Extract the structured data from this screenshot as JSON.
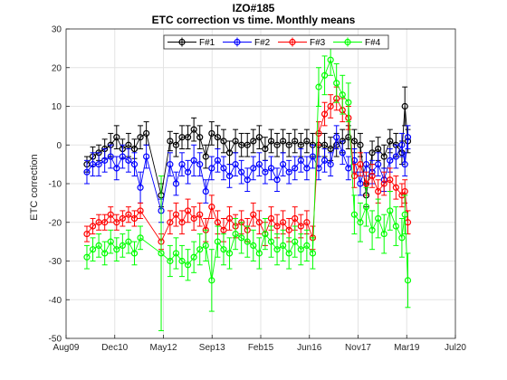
{
  "chart_data": {
    "type": "scatter",
    "title": "IZO#185",
    "subtitle": "ETC correction vs time. Monthly means",
    "xlabel": "",
    "ylabel": "ETC correction",
    "x_ticks": [
      "Aug09",
      "Dec10",
      "May12",
      "Sep13",
      "Feb15",
      "Jun16",
      "Nov17",
      "Mar19",
      "Jul20"
    ],
    "xlim": [
      "2009-08",
      "2020-07"
    ],
    "ylim": [
      -50,
      30
    ],
    "y_ticks": [
      -50,
      -40,
      -30,
      -20,
      -10,
      0,
      10,
      20,
      30
    ],
    "grid": true,
    "legend_placement": "top-center",
    "series": [
      {
        "name": "F#1",
        "color": "#000000",
        "marker": "circle",
        "points": [
          [
            "2010-03",
            -5,
            2
          ],
          [
            "2010-05",
            -3,
            2.5
          ],
          [
            "2010-07",
            -2,
            2
          ],
          [
            "2010-09",
            -1,
            2.5
          ],
          [
            "2010-11",
            0,
            3
          ],
          [
            "2011-01",
            2,
            3
          ],
          [
            "2011-03",
            -1,
            2.5
          ],
          [
            "2011-05",
            0,
            3
          ],
          [
            "2011-07",
            -1,
            2.5
          ],
          [
            "2011-09",
            2,
            3
          ],
          [
            "2011-11",
            3,
            3
          ],
          [
            "2012-04",
            -13,
            3
          ],
          [
            "2012-07",
            1,
            2.5
          ],
          [
            "2012-09",
            0,
            3
          ],
          [
            "2012-11",
            2,
            3
          ],
          [
            "2013-01",
            2,
            3
          ],
          [
            "2013-03",
            4,
            3
          ],
          [
            "2013-05",
            2,
            3
          ],
          [
            "2013-07",
            -3,
            3
          ],
          [
            "2013-09",
            3,
            3
          ],
          [
            "2013-11",
            2,
            3
          ],
          [
            "2014-01",
            1,
            3
          ],
          [
            "2014-03",
            -2,
            3
          ],
          [
            "2014-05",
            1,
            3
          ],
          [
            "2014-07",
            0,
            3
          ],
          [
            "2014-09",
            0,
            3
          ],
          [
            "2014-11",
            1,
            3
          ],
          [
            "2015-01",
            2,
            3
          ],
          [
            "2015-03",
            -1,
            3
          ],
          [
            "2015-05",
            1,
            3
          ],
          [
            "2015-07",
            0,
            3
          ],
          [
            "2015-09",
            1,
            3
          ],
          [
            "2015-11",
            0,
            3
          ],
          [
            "2016-01",
            1,
            3
          ],
          [
            "2016-03",
            0,
            3
          ],
          [
            "2016-05",
            1,
            3
          ],
          [
            "2016-07",
            0,
            3
          ],
          [
            "2016-09",
            0,
            3
          ],
          [
            "2016-11",
            0,
            3
          ],
          [
            "2017-01",
            -1,
            3
          ],
          [
            "2017-03",
            0,
            3
          ],
          [
            "2017-05",
            1,
            3
          ],
          [
            "2017-07",
            2,
            3
          ],
          [
            "2017-09",
            1,
            3
          ],
          [
            "2017-11",
            0,
            3
          ],
          [
            "2018-01",
            -13,
            3
          ],
          [
            "2018-03",
            -2,
            3
          ],
          [
            "2018-05",
            -1,
            3
          ],
          [
            "2018-07",
            -3,
            3
          ],
          [
            "2018-09",
            1,
            3
          ],
          [
            "2018-11",
            0,
            3
          ],
          [
            "2019-01",
            -2,
            3
          ],
          [
            "2019-02",
            10,
            5
          ],
          [
            "2019-03",
            1,
            3
          ]
        ]
      },
      {
        "name": "F#2",
        "color": "#0000ff",
        "marker": "circle",
        "points": [
          [
            "2010-03",
            -7,
            3
          ],
          [
            "2010-05",
            -5,
            3
          ],
          [
            "2010-07",
            -5,
            3
          ],
          [
            "2010-09",
            -4,
            3
          ],
          [
            "2010-11",
            -3,
            3
          ],
          [
            "2011-01",
            -6,
            3
          ],
          [
            "2011-03",
            -3,
            3
          ],
          [
            "2011-05",
            -4,
            3
          ],
          [
            "2011-07",
            -5,
            3
          ],
          [
            "2011-09",
            -11,
            4
          ],
          [
            "2011-11",
            -3,
            3
          ],
          [
            "2012-04",
            -17,
            3
          ],
          [
            "2012-07",
            -5,
            3
          ],
          [
            "2012-09",
            -10,
            3
          ],
          [
            "2012-11",
            -5,
            3
          ],
          [
            "2013-01",
            -7,
            3
          ],
          [
            "2013-03",
            -4,
            4
          ],
          [
            "2013-05",
            -5,
            3
          ],
          [
            "2013-07",
            -12,
            3
          ],
          [
            "2013-09",
            -6,
            3
          ],
          [
            "2013-11",
            -4,
            3
          ],
          [
            "2014-01",
            -6,
            3
          ],
          [
            "2014-03",
            -8,
            3
          ],
          [
            "2014-05",
            -5,
            3
          ],
          [
            "2014-07",
            -7,
            3
          ],
          [
            "2014-09",
            -9,
            3
          ],
          [
            "2014-11",
            -6,
            3
          ],
          [
            "2015-01",
            -5,
            3
          ],
          [
            "2015-03",
            -7,
            3
          ],
          [
            "2015-05",
            -6,
            3
          ],
          [
            "2015-07",
            -9,
            3
          ],
          [
            "2015-09",
            -5,
            3
          ],
          [
            "2015-11",
            -7,
            3
          ],
          [
            "2016-01",
            -6,
            3
          ],
          [
            "2016-03",
            -4,
            3
          ],
          [
            "2016-05",
            -6,
            3
          ],
          [
            "2016-07",
            -3,
            3
          ],
          [
            "2016-09",
            -6,
            3
          ],
          [
            "2016-11",
            -4,
            3
          ],
          [
            "2017-01",
            -5,
            3
          ],
          [
            "2017-03",
            2,
            3
          ],
          [
            "2017-05",
            -2,
            3
          ],
          [
            "2017-07",
            -6,
            3
          ],
          [
            "2017-09",
            -4,
            3
          ],
          [
            "2017-11",
            -10,
            3
          ],
          [
            "2018-01",
            -5,
            3
          ],
          [
            "2018-03",
            -7,
            3
          ],
          [
            "2018-05",
            -5,
            3
          ],
          [
            "2018-07",
            -9,
            3
          ],
          [
            "2018-09",
            -4,
            3
          ],
          [
            "2018-11",
            -3,
            3
          ],
          [
            "2019-01",
            0,
            3
          ],
          [
            "2019-02",
            -5,
            3
          ],
          [
            "2019-03",
            2,
            3
          ]
        ]
      },
      {
        "name": "F#3",
        "color": "#ff0000",
        "marker": "circle",
        "points": [
          [
            "2010-03",
            -23,
            2
          ],
          [
            "2010-05",
            -21,
            2
          ],
          [
            "2010-07",
            -20,
            2
          ],
          [
            "2010-09",
            -20,
            2
          ],
          [
            "2010-11",
            -18,
            2
          ],
          [
            "2011-01",
            -20,
            2
          ],
          [
            "2011-03",
            -19,
            2
          ],
          [
            "2011-05",
            -18,
            2
          ],
          [
            "2011-07",
            -19,
            2
          ],
          [
            "2011-09",
            -17,
            2
          ],
          [
            "2012-04",
            -25,
            2
          ],
          [
            "2012-07",
            -20,
            3
          ],
          [
            "2012-09",
            -18,
            3
          ],
          [
            "2012-11",
            -20,
            3
          ],
          [
            "2013-01",
            -17,
            3
          ],
          [
            "2013-03",
            -19,
            3
          ],
          [
            "2013-05",
            -18,
            3
          ],
          [
            "2013-07",
            -22,
            3
          ],
          [
            "2013-09",
            -16,
            3
          ],
          [
            "2013-11",
            -20,
            3
          ],
          [
            "2014-01",
            -22,
            3
          ],
          [
            "2014-03",
            -19,
            3
          ],
          [
            "2014-05",
            -21,
            3
          ],
          [
            "2014-07",
            -20,
            3
          ],
          [
            "2014-09",
            -22,
            3
          ],
          [
            "2014-11",
            -18,
            3
          ],
          [
            "2015-01",
            -20,
            3
          ],
          [
            "2015-03",
            -23,
            3
          ],
          [
            "2015-05",
            -19,
            3
          ],
          [
            "2015-07",
            -21,
            3
          ],
          [
            "2015-09",
            -20,
            3
          ],
          [
            "2015-11",
            -22,
            3
          ],
          [
            "2016-01",
            -19,
            3
          ],
          [
            "2016-03",
            -21,
            3
          ],
          [
            "2016-05",
            -20,
            3
          ],
          [
            "2016-07",
            -24,
            3
          ],
          [
            "2016-09",
            3,
            3
          ],
          [
            "2016-11",
            8,
            3
          ],
          [
            "2017-01",
            10,
            3
          ],
          [
            "2017-03",
            12,
            3
          ],
          [
            "2017-05",
            9,
            3
          ],
          [
            "2017-07",
            7,
            3
          ],
          [
            "2017-09",
            -8,
            3
          ],
          [
            "2017-11",
            -5,
            3
          ],
          [
            "2018-01",
            -10,
            3
          ],
          [
            "2018-03",
            -8,
            3
          ],
          [
            "2018-05",
            -12,
            3
          ],
          [
            "2018-07",
            -10,
            3
          ],
          [
            "2018-09",
            -9,
            3
          ],
          [
            "2018-11",
            -11,
            3
          ],
          [
            "2019-01",
            -13,
            3
          ],
          [
            "2019-02",
            -12,
            3
          ],
          [
            "2019-03",
            -20,
            3
          ]
        ]
      },
      {
        "name": "F#4",
        "color": "#00ff00",
        "marker": "circle",
        "points": [
          [
            "2010-03",
            -29,
            3
          ],
          [
            "2010-05",
            -27,
            3
          ],
          [
            "2010-07",
            -26,
            3
          ],
          [
            "2010-09",
            -28,
            3
          ],
          [
            "2010-11",
            -25,
            3
          ],
          [
            "2011-01",
            -27,
            3
          ],
          [
            "2011-03",
            -26,
            3
          ],
          [
            "2011-05",
            -25,
            3
          ],
          [
            "2011-07",
            -28,
            3
          ],
          [
            "2011-09",
            -24,
            3
          ],
          [
            "2012-04",
            -28,
            20
          ],
          [
            "2012-07",
            -30,
            4
          ],
          [
            "2012-09",
            -28,
            4
          ],
          [
            "2012-11",
            -30,
            4
          ],
          [
            "2013-01",
            -31,
            4
          ],
          [
            "2013-03",
            -29,
            4
          ],
          [
            "2013-05",
            -27,
            4
          ],
          [
            "2013-07",
            -26,
            4
          ],
          [
            "2013-09",
            -35,
            8
          ],
          [
            "2013-11",
            -25,
            4
          ],
          [
            "2014-01",
            -27,
            4
          ],
          [
            "2014-03",
            -28,
            4
          ],
          [
            "2014-05",
            -23,
            4
          ],
          [
            "2014-07",
            -24,
            4
          ],
          [
            "2014-09",
            -25,
            4
          ],
          [
            "2014-11",
            -26,
            4
          ],
          [
            "2015-01",
            -28,
            4
          ],
          [
            "2015-03",
            -23,
            4
          ],
          [
            "2015-05",
            -25,
            4
          ],
          [
            "2015-07",
            -27,
            4
          ],
          [
            "2015-09",
            -26,
            4
          ],
          [
            "2015-11",
            -28,
            4
          ],
          [
            "2016-01",
            -25,
            4
          ],
          [
            "2016-03",
            -27,
            4
          ],
          [
            "2016-05",
            -26,
            4
          ],
          [
            "2016-07",
            -28,
            4
          ],
          [
            "2016-09",
            15,
            5
          ],
          [
            "2016-11",
            18,
            5
          ],
          [
            "2017-01",
            22,
            4
          ],
          [
            "2017-03",
            16,
            5
          ],
          [
            "2017-05",
            13,
            5
          ],
          [
            "2017-07",
            11,
            5
          ],
          [
            "2017-09",
            -18,
            5
          ],
          [
            "2017-11",
            -20,
            5
          ],
          [
            "2018-01",
            -16,
            5
          ],
          [
            "2018-03",
            -22,
            5
          ],
          [
            "2018-05",
            -19,
            5
          ],
          [
            "2018-07",
            -23,
            5
          ],
          [
            "2018-09",
            -17,
            5
          ],
          [
            "2018-11",
            -21,
            5
          ],
          [
            "2019-01",
            -24,
            5
          ],
          [
            "2019-02",
            -18,
            5
          ],
          [
            "2019-03",
            -35,
            7
          ]
        ]
      }
    ]
  }
}
